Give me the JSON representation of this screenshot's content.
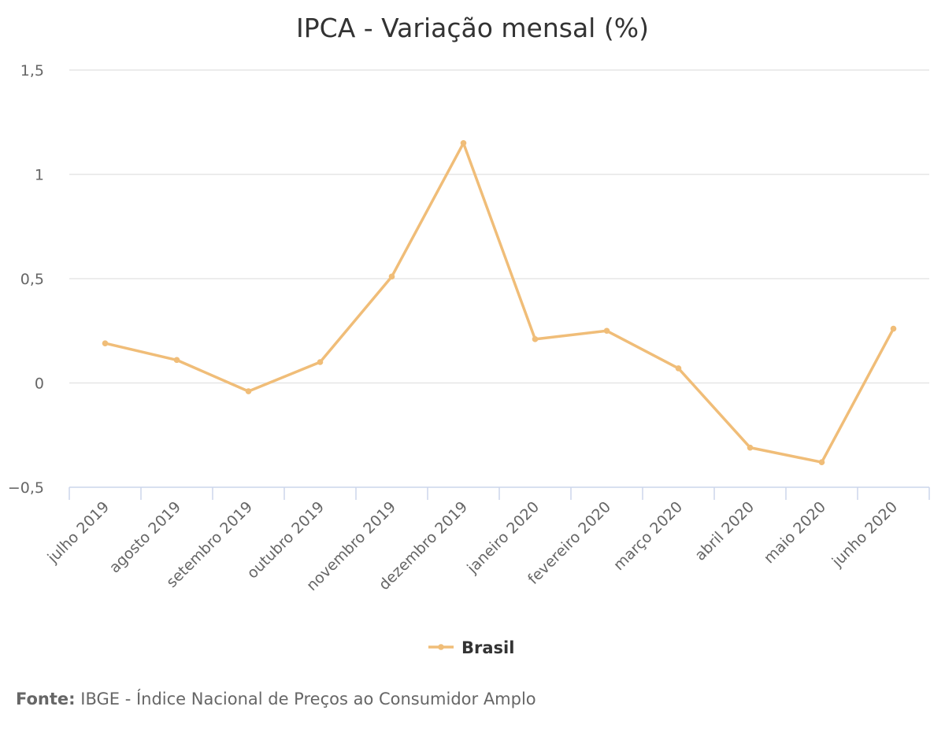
{
  "chart_data": {
    "type": "line",
    "title": "IPCA - Variação mensal (%)",
    "categories": [
      "julho 2019",
      "agosto 2019",
      "setembro 2019",
      "outubro 2019",
      "novembro 2019",
      "dezembro 2019",
      "janeiro 2020",
      "fevereiro 2020",
      "março 2020",
      "abril 2020",
      "maio 2020",
      "junho 2020"
    ],
    "series": [
      {
        "name": "Brasil",
        "color": "#f0bd78",
        "values": [
          0.19,
          0.11,
          -0.04,
          0.1,
          0.51,
          1.15,
          0.21,
          0.25,
          0.07,
          -0.31,
          -0.38,
          0.26
        ]
      }
    ],
    "ylim": [
      -0.5,
      1.5
    ],
    "yticks": [
      -0.5,
      0,
      0.5,
      1,
      1.5
    ],
    "ytick_labels": [
      "−0,5",
      "0",
      "0,5",
      "1",
      "1,5"
    ],
    "grid": true,
    "legend_position": "bottom-center"
  },
  "source": {
    "label": "Fonte:",
    "text": "IBGE - Índice Nacional de Preços ao Consumidor Amplo"
  }
}
